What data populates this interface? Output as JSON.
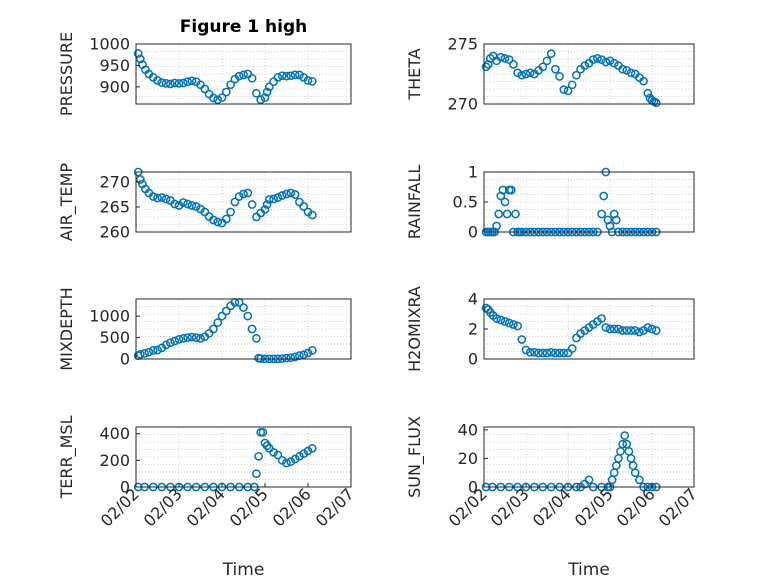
{
  "figure_title": "Figure 1 high",
  "chart_data": [
    {
      "type": "scatter",
      "id": "pressure",
      "ylabel": "PRESSURE",
      "ylim": [
        860,
        1000
      ],
      "yticks": [
        900,
        950,
        1000
      ],
      "ytick_labels": [
        "900",
        "950",
        "1000"
      ],
      "xlim": [
        0,
        5
      ],
      "xticks": [],
      "xtick_labels": [],
      "xlabel": "",
      "title": "Figure 1 high",
      "x": [
        0.05,
        0.1,
        0.15,
        0.22,
        0.3,
        0.4,
        0.5,
        0.6,
        0.7,
        0.8,
        0.9,
        1.0,
        1.1,
        1.2,
        1.3,
        1.4,
        1.5,
        1.6,
        1.7,
        1.8,
        1.9,
        2.0,
        2.1,
        2.2,
        2.3,
        2.4,
        2.5,
        2.6,
        2.7,
        2.8,
        2.9,
        3.0,
        3.05,
        3.1,
        3.2,
        3.3,
        3.4,
        3.5,
        3.6,
        3.7,
        3.8,
        3.9,
        4.0,
        4.1
      ],
      "values": [
        978,
        965,
        952,
        940,
        930,
        922,
        915,
        910,
        908,
        907,
        909,
        908,
        909,
        912,
        914,
        912,
        905,
        895,
        883,
        874,
        870,
        875,
        888,
        905,
        918,
        925,
        928,
        930,
        920,
        885,
        870,
        875,
        888,
        900,
        912,
        922,
        926,
        925,
        926,
        928,
        928,
        922,
        915,
        913
      ]
    },
    {
      "type": "scatter",
      "id": "theta",
      "ylabel": "THETA",
      "ylim": [
        270,
        275
      ],
      "yticks": [
        270,
        275
      ],
      "ytick_labels": [
        "270",
        "275"
      ],
      "xlim": [
        0,
        5
      ],
      "xticks": [],
      "xtick_labels": [],
      "xlabel": "",
      "title": "",
      "x": [
        0.05,
        0.1,
        0.15,
        0.22,
        0.3,
        0.4,
        0.5,
        0.6,
        0.7,
        0.8,
        0.9,
        1.0,
        1.1,
        1.2,
        1.3,
        1.4,
        1.5,
        1.6,
        1.7,
        1.8,
        1.9,
        2.0,
        2.1,
        2.2,
        2.3,
        2.4,
        2.5,
        2.6,
        2.7,
        2.8,
        2.9,
        3.0,
        3.1,
        3.2,
        3.3,
        3.4,
        3.5,
        3.6,
        3.7,
        3.8,
        3.9,
        3.95,
        4.0,
        4.05,
        4.1
      ],
      "values": [
        273.1,
        273.3,
        273.8,
        274.0,
        273.6,
        273.9,
        273.8,
        273.7,
        273.3,
        272.6,
        272.4,
        272.5,
        272.6,
        272.5,
        272.8,
        273.1,
        273.6,
        274.2,
        272.9,
        272.3,
        271.2,
        271.1,
        271.6,
        272.4,
        272.9,
        273.2,
        273.4,
        273.7,
        273.8,
        273.7,
        273.5,
        273.6,
        273.4,
        273.2,
        272.9,
        272.8,
        272.6,
        272.5,
        272.2,
        271.9,
        270.9,
        270.5,
        270.3,
        270.2,
        270.1
      ]
    },
    {
      "type": "scatter",
      "id": "air_temp",
      "ylabel": "AIR_TEMP",
      "ylim": [
        260,
        272
      ],
      "yticks": [
        260,
        265,
        270
      ],
      "ytick_labels": [
        "260",
        "265",
        "270"
      ],
      "xlim": [
        0,
        5
      ],
      "xticks": [],
      "xtick_labels": [],
      "xlabel": "",
      "title": "",
      "x": [
        0.05,
        0.1,
        0.15,
        0.22,
        0.3,
        0.4,
        0.5,
        0.6,
        0.7,
        0.8,
        0.9,
        1.0,
        1.1,
        1.2,
        1.3,
        1.4,
        1.5,
        1.6,
        1.7,
        1.8,
        1.9,
        2.0,
        2.1,
        2.2,
        2.3,
        2.4,
        2.5,
        2.6,
        2.7,
        2.8,
        2.9,
        3.0,
        3.05,
        3.1,
        3.2,
        3.3,
        3.4,
        3.5,
        3.6,
        3.7,
        3.8,
        3.9,
        4.0,
        4.1
      ],
      "values": [
        272.0,
        270.5,
        269.6,
        268.6,
        267.8,
        267.1,
        266.8,
        266.9,
        266.6,
        266.3,
        265.6,
        265.3,
        265.9,
        265.6,
        265.3,
        265.1,
        264.6,
        264.0,
        263.1,
        262.4,
        262.0,
        261.8,
        262.6,
        264.0,
        266.0,
        267.1,
        267.6,
        267.8,
        265.5,
        263.0,
        263.8,
        264.5,
        265.5,
        266.5,
        266.6,
        266.9,
        267.3,
        267.6,
        267.8,
        267.5,
        266.0,
        265.1,
        264.0,
        263.4
      ]
    },
    {
      "type": "scatter",
      "id": "rainfall",
      "ylabel": "RAINFALL",
      "ylim": [
        0,
        1
      ],
      "yticks": [
        0,
        0.5,
        1
      ],
      "ytick_labels": [
        "0",
        "0.5",
        "1"
      ],
      "xlim": [
        0,
        5
      ],
      "xticks": [],
      "xtick_labels": [],
      "xlabel": "",
      "title": "",
      "x": [
        0.05,
        0.1,
        0.15,
        0.2,
        0.25,
        0.3,
        0.35,
        0.4,
        0.45,
        0.5,
        0.55,
        0.6,
        0.65,
        0.7,
        0.75,
        0.8,
        0.85,
        0.9,
        1.0,
        1.1,
        1.2,
        1.3,
        1.4,
        1.5,
        1.6,
        1.7,
        1.8,
        1.9,
        2.0,
        2.1,
        2.2,
        2.3,
        2.4,
        2.5,
        2.6,
        2.7,
        2.8,
        2.85,
        2.9,
        2.95,
        3.0,
        3.05,
        3.1,
        3.15,
        3.2,
        3.3,
        3.4,
        3.5,
        3.6,
        3.7,
        3.8,
        3.9,
        4.0,
        4.1
      ],
      "values": [
        0,
        0,
        0,
        0,
        0,
        0.1,
        0.3,
        0.6,
        0.7,
        0.5,
        0.3,
        0.7,
        0.7,
        0,
        0.3,
        0,
        0,
        0,
        0,
        0,
        0,
        0,
        0,
        0,
        0,
        0,
        0,
        0,
        0,
        0,
        0,
        0,
        0,
        0,
        0,
        0,
        0.3,
        0.6,
        1.0,
        0.2,
        0.1,
        0,
        0.3,
        0.2,
        0,
        0,
        0,
        0,
        0,
        0,
        0,
        0,
        0,
        0
      ]
    },
    {
      "type": "scatter",
      "id": "mixdepth",
      "ylabel": "MIXDEPTH",
      "ylim": [
        0,
        1400
      ],
      "yticks": [
        0,
        500,
        1000
      ],
      "ytick_labels": [
        "0",
        "500",
        "1000"
      ],
      "xlim": [
        0,
        5
      ],
      "xticks": [],
      "xtick_labels": [],
      "xlabel": "",
      "title": "",
      "x": [
        0.05,
        0.1,
        0.2,
        0.3,
        0.4,
        0.5,
        0.6,
        0.7,
        0.8,
        0.9,
        1.0,
        1.1,
        1.2,
        1.3,
        1.4,
        1.5,
        1.6,
        1.7,
        1.8,
        1.9,
        2.0,
        2.1,
        2.2,
        2.3,
        2.4,
        2.5,
        2.6,
        2.7,
        2.8,
        2.85,
        2.9,
        3.0,
        3.1,
        3.2,
        3.3,
        3.4,
        3.5,
        3.6,
        3.7,
        3.8,
        3.9,
        4.0,
        4.1
      ],
      "values": [
        80,
        110,
        130,
        160,
        200,
        210,
        260,
        330,
        380,
        420,
        460,
        480,
        500,
        510,
        500,
        480,
        520,
        600,
        700,
        850,
        1000,
        1120,
        1240,
        1320,
        1320,
        1200,
        1000,
        700,
        480,
        20,
        10,
        5,
        5,
        5,
        5,
        10,
        20,
        30,
        50,
        80,
        100,
        140,
        200
      ]
    },
    {
      "type": "scatter",
      "id": "h2omixra",
      "ylabel": "H2OMIXRA",
      "ylim": [
        0,
        4
      ],
      "yticks": [
        0,
        2,
        4
      ],
      "ytick_labels": [
        "0",
        "2",
        "4"
      ],
      "xlim": [
        0,
        5
      ],
      "xticks": [],
      "xtick_labels": [],
      "xlabel": "",
      "title": "",
      "x": [
        0.05,
        0.1,
        0.15,
        0.22,
        0.3,
        0.4,
        0.5,
        0.6,
        0.7,
        0.8,
        0.9,
        1.0,
        1.1,
        1.2,
        1.3,
        1.4,
        1.5,
        1.6,
        1.7,
        1.8,
        1.9,
        2.0,
        2.1,
        2.2,
        2.3,
        2.4,
        2.5,
        2.6,
        2.7,
        2.8,
        2.9,
        3.0,
        3.1,
        3.2,
        3.3,
        3.4,
        3.5,
        3.6,
        3.7,
        3.8,
        3.9,
        4.0,
        4.1
      ],
      "values": [
        3.4,
        3.3,
        3.1,
        2.9,
        2.7,
        2.6,
        2.5,
        2.4,
        2.3,
        2.2,
        1.3,
        0.6,
        0.45,
        0.45,
        0.4,
        0.4,
        0.4,
        0.45,
        0.4,
        0.4,
        0.4,
        0.4,
        0.7,
        1.4,
        1.7,
        1.9,
        2.1,
        2.3,
        2.5,
        2.7,
        2.1,
        2.0,
        2.0,
        2.0,
        1.9,
        1.9,
        1.9,
        1.9,
        1.8,
        1.9,
        2.1,
        2.0,
        1.9
      ]
    },
    {
      "type": "scatter",
      "id": "terr_msl",
      "ylabel": "TERR_MSL",
      "ylim": [
        0,
        450
      ],
      "yticks": [
        0,
        200,
        400
      ],
      "ytick_labels": [
        "0",
        "200",
        "400"
      ],
      "xlim": [
        0,
        5
      ],
      "xticks": [
        0,
        1,
        2,
        3,
        4,
        5
      ],
      "xtick_labels": [
        "02/02",
        "02/03",
        "02/04",
        "02/05",
        "02/06",
        "02/07"
      ],
      "xlabel": "Time",
      "title": "",
      "x": [
        0.05,
        0.2,
        0.4,
        0.6,
        0.8,
        1.0,
        1.2,
        1.4,
        1.6,
        1.8,
        2.0,
        2.2,
        2.4,
        2.6,
        2.75,
        2.8,
        2.85,
        2.9,
        2.95,
        3.0,
        3.05,
        3.1,
        3.2,
        3.3,
        3.4,
        3.5,
        3.6,
        3.7,
        3.8,
        3.9,
        4.0,
        4.1
      ],
      "values": [
        0,
        0,
        0,
        0,
        0,
        0,
        0,
        0,
        0,
        0,
        0,
        0,
        0,
        0,
        0,
        100,
        230,
        410,
        410,
        330,
        310,
        290,
        260,
        240,
        200,
        180,
        190,
        210,
        230,
        250,
        270,
        290
      ]
    },
    {
      "type": "scatter",
      "id": "sun_flux",
      "ylabel": "SUN_FLUX",
      "ylim": [
        0,
        42
      ],
      "yticks": [
        0,
        20,
        40
      ],
      "ytick_labels": [
        "0",
        "20",
        "40"
      ],
      "xlim": [
        0,
        5
      ],
      "xticks": [
        0,
        1,
        2,
        3,
        4,
        5
      ],
      "xtick_labels": [
        "02/02",
        "02/03",
        "02/04",
        "02/05",
        "02/06",
        "02/07"
      ],
      "xlabel": "Time",
      "title": "",
      "x": [
        0.05,
        0.2,
        0.4,
        0.6,
        0.8,
        1.0,
        1.2,
        1.4,
        1.6,
        1.8,
        2.0,
        2.2,
        2.3,
        2.4,
        2.5,
        2.6,
        2.8,
        2.95,
        3.0,
        3.05,
        3.1,
        3.15,
        3.2,
        3.25,
        3.3,
        3.35,
        3.4,
        3.45,
        3.5,
        3.55,
        3.6,
        3.7,
        3.8,
        3.9,
        4.0,
        4.1
      ],
      "values": [
        0,
        0,
        0,
        0,
        0,
        0,
        0,
        0,
        0,
        0,
        0,
        0,
        0,
        2,
        5,
        0,
        0,
        0,
        0,
        5,
        10,
        15,
        20,
        25,
        30,
        36,
        30,
        25,
        20,
        15,
        10,
        5,
        0,
        0,
        0,
        0
      ]
    }
  ]
}
